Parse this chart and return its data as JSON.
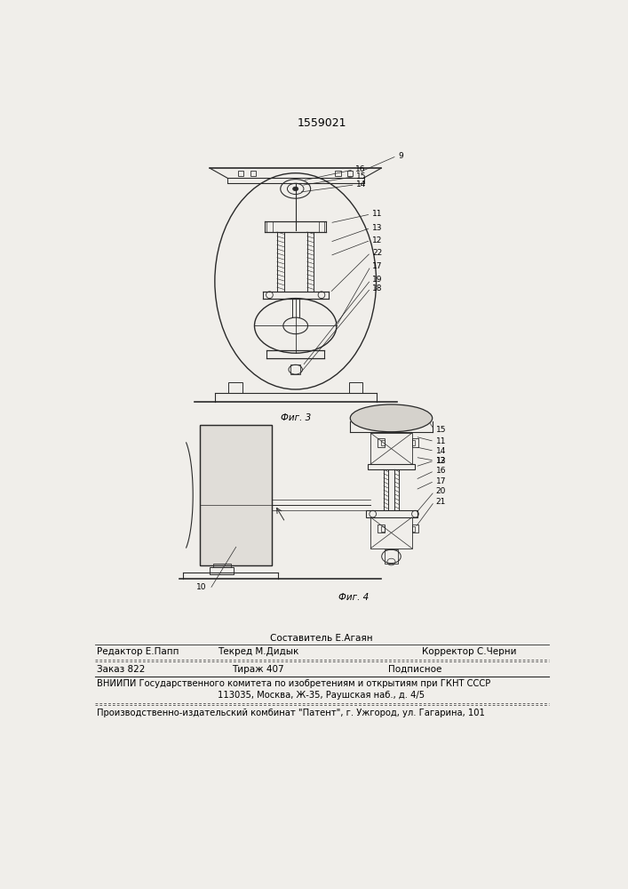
{
  "patent_number": "1559021",
  "bg_color": "#f0eeea",
  "fig3_caption": "Фиг. 3",
  "fig4_caption": "Фиг. 4",
  "line1": "Составитель Е.Агаян",
  "line2_left": "Редактор Е.Папп",
  "line2_mid": "Текред М.Дидык",
  "line2_right": "Корректор С.Черни",
  "line3_left": "Заказ 822",
  "line3_mid": "Тираж 407",
  "line3_right": "Подписное",
  "line4": "ВНИИПИ Государственного комитета по изобретениям и открытиям при ГКНТ СССР",
  "line5": "113035, Москва, Ж-35, Раушская наб., д. 4/5",
  "line6": "Производственно-издательский комбинат \"Патент\", г. Ужгород, ул. Гагарина, 101"
}
